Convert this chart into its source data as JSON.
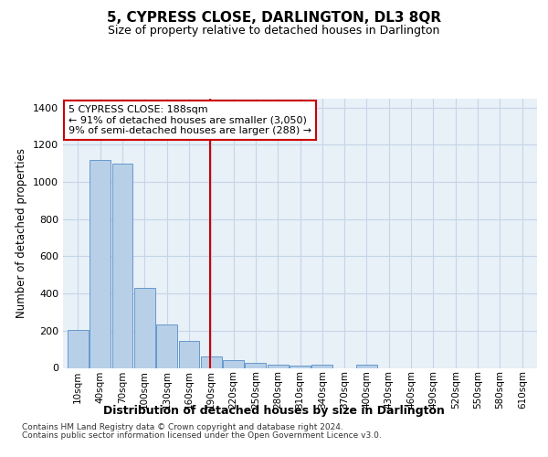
{
  "title": "5, CYPRESS CLOSE, DARLINGTON, DL3 8QR",
  "subtitle": "Size of property relative to detached houses in Darlington",
  "xlabel": "Distribution of detached houses by size in Darlington",
  "ylabel": "Number of detached properties",
  "footnote1": "Contains HM Land Registry data © Crown copyright and database right 2024.",
  "footnote2": "Contains public sector information licensed under the Open Government Licence v3.0.",
  "annotation_title": "5 CYPRESS CLOSE: 188sqm",
  "annotation_line1": "← 91% of detached houses are smaller (3,050)",
  "annotation_line2": "9% of semi-detached houses are larger (288) →",
  "property_line_x": 188,
  "bar_color": "#b8cfe8",
  "bar_edge_color": "#6699cc",
  "vline_color": "#cc0000",
  "plot_bg_color": "#e8f0f8",
  "grid_color": "#c5d5e8",
  "categories": [
    10,
    40,
    70,
    100,
    130,
    160,
    190,
    220,
    250,
    280,
    310,
    340,
    370,
    400,
    430,
    460,
    490,
    520,
    550,
    580,
    610
  ],
  "values": [
    205,
    1120,
    1100,
    430,
    235,
    145,
    60,
    40,
    25,
    15,
    10,
    15,
    0,
    15,
    0,
    0,
    0,
    0,
    0,
    0,
    0
  ],
  "ylim": [
    0,
    1450
  ],
  "xlim": [
    -10,
    630
  ],
  "yticks": [
    0,
    200,
    400,
    600,
    800,
    1000,
    1200,
    1400
  ]
}
